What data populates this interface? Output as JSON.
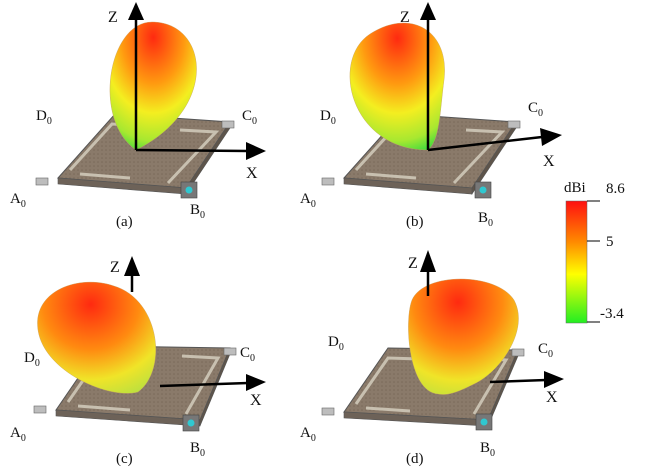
{
  "figure": {
    "panels": [
      {
        "caption": "(a)",
        "axis_z": "Z",
        "axis_x": "X",
        "corner_a": "A",
        "corner_b": "B",
        "corner_c": "C",
        "corner_d": "D",
        "corner_sub": "0"
      },
      {
        "caption": "(b)",
        "axis_z": "Z",
        "axis_x": "X",
        "corner_a": "A",
        "corner_b": "B",
        "corner_c": "C",
        "corner_d": "D",
        "corner_sub": "0"
      },
      {
        "caption": "(c)",
        "axis_z": "Z",
        "axis_x": "X",
        "corner_a": "A",
        "corner_b": "B",
        "corner_c": "C",
        "corner_d": "D",
        "corner_sub": "0"
      },
      {
        "caption": "(d)",
        "axis_z": "Z",
        "axis_x": "X",
        "corner_a": "A",
        "corner_b": "B",
        "corner_c": "C",
        "corner_d": "D",
        "corner_sub": "0"
      }
    ],
    "colorbar": {
      "unit": "dBi",
      "ticks": [
        "8.6",
        "5",
        "-3.4"
      ],
      "colors": [
        "#ff1010",
        "#ff8800",
        "#ffff00",
        "#22ee22"
      ]
    }
  }
}
